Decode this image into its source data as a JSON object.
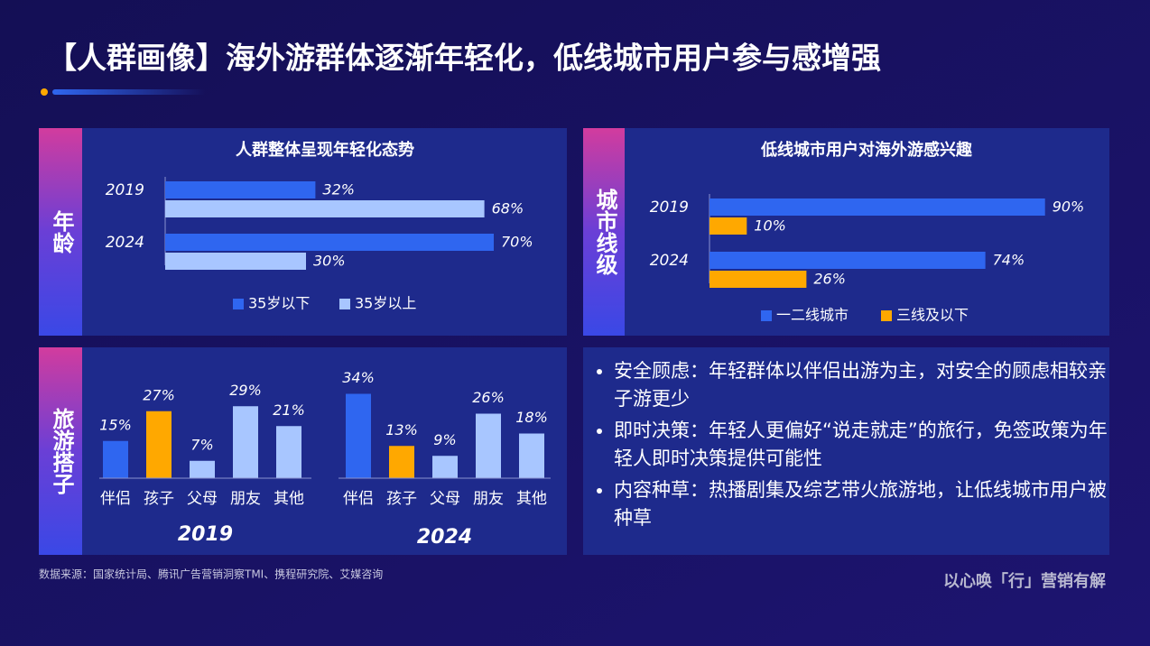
{
  "header": {
    "title": "【人群画像】海外游群体逐渐年轻化，低线城市用户参与感增强"
  },
  "side_labels": [
    "年龄",
    "城市线级",
    "旅游搭子"
  ],
  "chart_data": [
    {
      "type": "hbar",
      "title": "人群整体呈现年轻化态势",
      "categories": [
        "2019",
        "2024"
      ],
      "xlim": [
        0,
        100
      ],
      "series": [
        {
          "name": "35岁以下",
          "color": "#2f66f0",
          "values": [
            32,
            70
          ],
          "value_labels": [
            "32%",
            "70%"
          ]
        },
        {
          "name": "35岁以上",
          "color": "#a8c6ff",
          "values": [
            68,
            30
          ],
          "value_labels": [
            "68%",
            "30%"
          ]
        }
      ]
    },
    {
      "type": "hbar",
      "title": "低线城市用户对海外游感兴趣",
      "categories": [
        "2019",
        "2024"
      ],
      "xlim": [
        0,
        100
      ],
      "series": [
        {
          "name": "一二线城市",
          "color": "#2f66f0",
          "values": [
            90,
            74
          ],
          "value_labels": [
            "90%",
            "74%"
          ]
        },
        {
          "name": "三线及以下",
          "color": "#ffa800",
          "values": [
            10,
            26
          ],
          "value_labels": [
            "10%",
            "26%"
          ]
        }
      ]
    },
    {
      "type": "bar",
      "title": "2019",
      "categories": [
        "伴侣",
        "孩子",
        "父母",
        "朋友",
        "其他"
      ],
      "ylim": [
        0,
        40
      ],
      "values": [
        15,
        27,
        7,
        29,
        21
      ],
      "value_labels": [
        "15%",
        "27%",
        "7%",
        "29%",
        "21%"
      ],
      "colors": [
        "#2f66f0",
        "#ffa800",
        "#a8c6ff",
        "#a8c6ff",
        "#a8c6ff"
      ]
    },
    {
      "type": "bar",
      "title": "2024",
      "categories": [
        "伴侣",
        "孩子",
        "父母",
        "朋友",
        "其他"
      ],
      "ylim": [
        0,
        40
      ],
      "values": [
        34,
        13,
        9,
        26,
        18
      ],
      "value_labels": [
        "34%",
        "13%",
        "9%",
        "26%",
        "18%"
      ],
      "colors": [
        "#2f66f0",
        "#ffa800",
        "#a8c6ff",
        "#a8c6ff",
        "#a8c6ff"
      ]
    }
  ],
  "notes": {
    "bullets": [
      "安全顾虑：年轻群体以伴侣出游为主，对安全的顾虑相较亲子游更少",
      "即时决策：年轻人更偏好“说走就走”的旅行，免签政策为年轻人即时决策提供可能性",
      "内容种草：热播剧集及综艺带火旅游地，让低线城市用户被种草"
    ]
  },
  "footer": {
    "source": "数据来源：国家统计局、腾讯广告营销洞察TMI、携程研究院、艾媒咨询",
    "brand": "以心唤「行」营销有解"
  }
}
